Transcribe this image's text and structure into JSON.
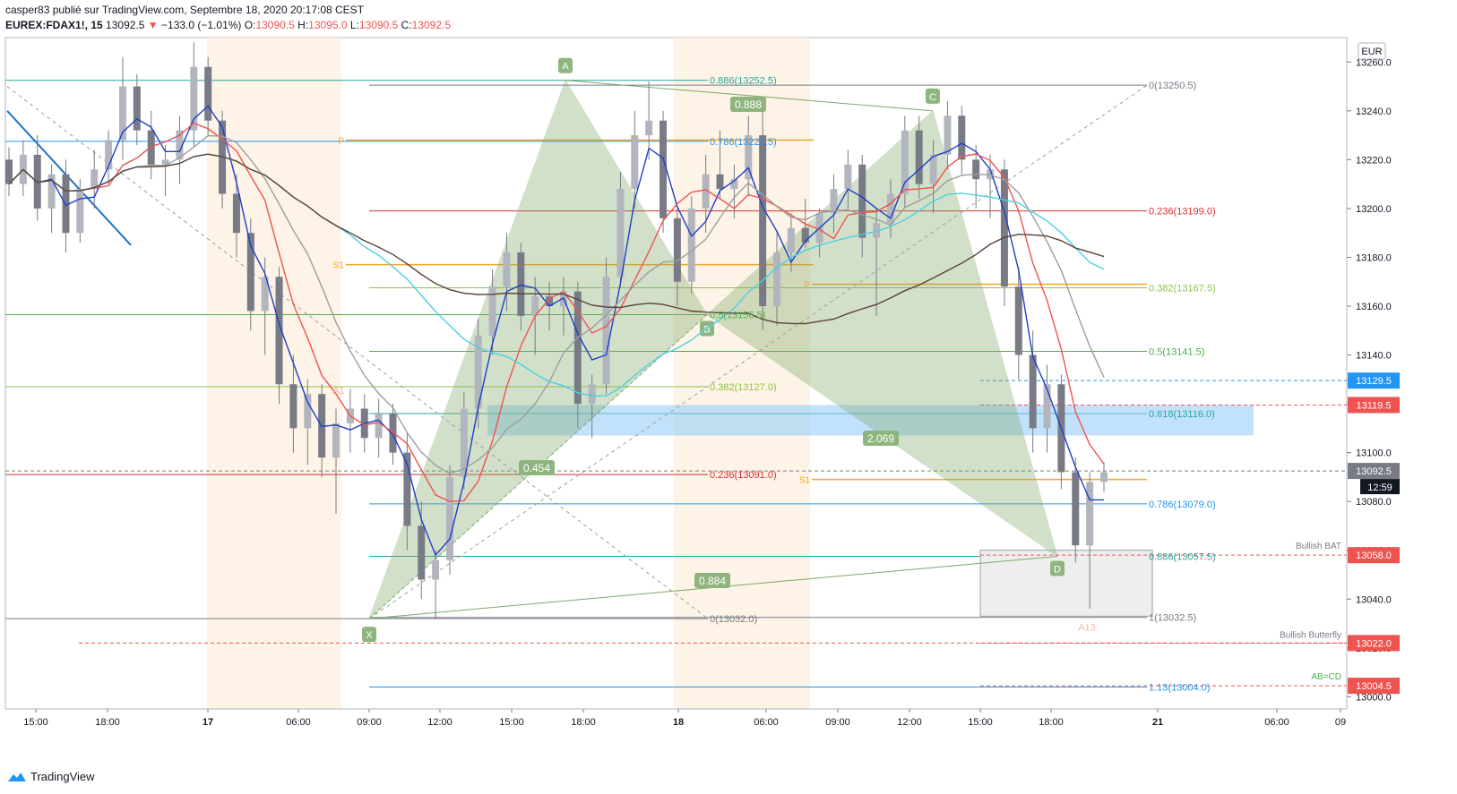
{
  "header": {
    "publisher": "casper83 publié sur TradingView.com, Septembre 18, 2020 20:17:08 CEST",
    "symbol": "EUREX:FDAX1!, 15",
    "last": "13092.5",
    "change": "−133.0 (−1.01%)",
    "o_label": "O:",
    "o": "13090.5",
    "h_label": "H:",
    "h": "13095.0",
    "l_label": "L:",
    "l": "13090.5",
    "c_label": "C:",
    "c": "13092.5"
  },
  "currency": "EUR",
  "countdown": "12:59",
  "footer": {
    "brand": "TradingView"
  },
  "colors": {
    "up": "#26a69a",
    "down": "#ef5350",
    "candle": "#787b86",
    "pattern_fill": "#7fa86a",
    "fib_blue": "#2196f3"
  },
  "chart_data": {
    "type": "candlestick",
    "ylim": [
      12995,
      13270
    ],
    "y_ticks": [
      13000,
      13020,
      13040,
      13060,
      13080,
      13100,
      13120,
      13140,
      13160,
      13180,
      13200,
      13220,
      13240,
      13260
    ],
    "y_tick_labels": [
      "13000.0",
      "13020.0",
      "13040.0",
      "13060.0",
      "13080.0",
      "13100.0",
      "13120.0",
      "13140.0",
      "13160.0",
      "13180.0",
      "13200.0",
      "13220.0",
      "13240.0",
      "13260.0"
    ],
    "x_tick_labels": [
      "15:00",
      "18:00",
      "17",
      "06:00",
      "09:00",
      "12:00",
      "15:00",
      "18:00",
      "18",
      "06:00",
      "09:00",
      "12:00",
      "15:00",
      "18:00",
      "21",
      "06:00",
      "09"
    ],
    "price_badges": [
      {
        "label": "13129.5",
        "value": 13129.5,
        "color": "#2196f3"
      },
      {
        "label": "13119.5",
        "value": 13119.5,
        "color": "#ef5350"
      },
      {
        "label": "13092.5",
        "value": 13092.5,
        "color": "#787b86"
      },
      {
        "label": "13058.0",
        "value": 13058.0,
        "color": "#ef5350"
      },
      {
        "label": "13022.0",
        "value": 13022.0,
        "color": "#ef5350"
      },
      {
        "label": "13004.5",
        "value": 13004.5,
        "color": "#ef5350"
      }
    ],
    "fib_left": [
      {
        "label": "0.886(13252.5)",
        "value": 13252.5,
        "color": "#26a69a"
      },
      {
        "label": "0.786(13227.5)",
        "value": 13227.5,
        "color": "#2196f3"
      },
      {
        "label": "0.5(13156.5)",
        "value": 13156.5,
        "color": "#4caf50"
      },
      {
        "label": "0.382(13127.0)",
        "value": 13127.0,
        "color": "#8bc34a"
      },
      {
        "label": "0.236(13091.0)",
        "value": 13091.0,
        "color": "#d32f2f"
      },
      {
        "label": "0(13032.0)",
        "value": 13032.0,
        "color": "#787b86"
      }
    ],
    "fib_right": [
      {
        "label": "0(13250.5)",
        "value": 13250.5,
        "color": "#787b86"
      },
      {
        "label": "0.236(13199.0)",
        "value": 13199.0,
        "color": "#d32f2f"
      },
      {
        "label": "0.382(13167.5)",
        "value": 13167.5,
        "color": "#8bc34a"
      },
      {
        "label": "0.5(13141.5)",
        "value": 13141.5,
        "color": "#4caf50"
      },
      {
        "label": "0.618(13116.0)",
        "value": 13116.0,
        "color": "#26a69a"
      },
      {
        "label": "0.786(13079.0)",
        "value": 13079.0,
        "color": "#2196f3"
      },
      {
        "label": "0.886(13057.5)",
        "value": 13057.5,
        "color": "#26a69a"
      },
      {
        "label": "1(13032.5)",
        "value": 13032.5,
        "color": "#787b86"
      },
      {
        "label": "1.13(13004.0)",
        "value": 13004.0,
        "color": "#2196f3"
      }
    ],
    "pattern_points": [
      {
        "label": "X",
        "value": 13032.0
      },
      {
        "label": "A",
        "value": 13252.5
      },
      {
        "label": "B",
        "value": 13156.5
      },
      {
        "label": "C",
        "value": 13240.0
      },
      {
        "label": "D",
        "value": 13057.5
      }
    ],
    "ratios": [
      "0.888",
      "0.454",
      "2.069",
      "0.884"
    ],
    "pattern_names": [
      "Bullish BAT",
      "Bullish Butterfly",
      "AB=CD"
    ],
    "pivot_labels": [
      "P",
      "S1",
      "P",
      "S1"
    ],
    "markers": [
      "A1",
      "A13"
    ],
    "candles": [
      [
        13220,
        13225,
        13205,
        13210
      ],
      [
        13210,
        13228,
        13205,
        13222
      ],
      [
        13222,
        13230,
        13195,
        13200
      ],
      [
        13200,
        13218,
        13190,
        13214
      ],
      [
        13214,
        13220,
        13182,
        13190
      ],
      [
        13190,
        13212,
        13186,
        13208
      ],
      [
        13208,
        13224,
        13200,
        13216
      ],
      [
        13216,
        13232,
        13210,
        13228
      ],
      [
        13228,
        13262,
        13220,
        13250
      ],
      [
        13250,
        13255,
        13226,
        13232
      ],
      [
        13232,
        13240,
        13212,
        13218
      ],
      [
        13218,
        13226,
        13205,
        13220
      ],
      [
        13220,
        13238,
        13210,
        13232
      ],
      [
        13232,
        13268,
        13225,
        13258
      ],
      [
        13258,
        13262,
        13230,
        13236
      ],
      [
        13236,
        13240,
        13200,
        13206
      ],
      [
        13206,
        13214,
        13180,
        13190
      ],
      [
        13190,
        13196,
        13150,
        13158
      ],
      [
        13158,
        13180,
        13140,
        13172
      ],
      [
        13172,
        13176,
        13120,
        13128
      ],
      [
        13128,
        13140,
        13100,
        13110
      ],
      [
        13110,
        13130,
        13095,
        13124
      ],
      [
        13124,
        13128,
        13090,
        13098
      ],
      [
        13098,
        13118,
        13075,
        13112
      ],
      [
        13112,
        13126,
        13100,
        13118
      ],
      [
        13118,
        13124,
        13100,
        13106
      ],
      [
        13106,
        13122,
        13098,
        13116
      ],
      [
        13116,
        13120,
        13095,
        13100
      ],
      [
        13100,
        13108,
        13060,
        13070
      ],
      [
        13070,
        13080,
        13040,
        13048
      ],
      [
        13048,
        13060,
        13032,
        13056
      ],
      [
        13056,
        13095,
        13050,
        13090
      ],
      [
        13090,
        13125,
        13085,
        13118
      ],
      [
        13118,
        13155,
        13110,
        13148
      ],
      [
        13148,
        13175,
        13140,
        13168
      ],
      [
        13168,
        13190,
        13158,
        13182
      ],
      [
        13182,
        13186,
        13150,
        13156
      ],
      [
        13156,
        13172,
        13140,
        13164
      ],
      [
        13164,
        13170,
        13150,
        13160
      ],
      [
        13160,
        13172,
        13148,
        13166
      ],
      [
        13166,
        13170,
        13110,
        13120
      ],
      [
        13120,
        13132,
        13106,
        13128
      ],
      [
        13128,
        13180,
        13124,
        13172
      ],
      [
        13172,
        13215,
        13168,
        13208
      ],
      [
        13208,
        13240,
        13200,
        13230
      ],
      [
        13230,
        13252,
        13220,
        13236
      ],
      [
        13236,
        13240,
        13190,
        13196
      ],
      [
        13196,
        13200,
        13160,
        13170
      ],
      [
        13170,
        13205,
        13165,
        13200
      ],
      [
        13200,
        13222,
        13190,
        13214
      ],
      [
        13214,
        13232,
        13204,
        13208
      ],
      [
        13208,
        13218,
        13196,
        13212
      ],
      [
        13212,
        13238,
        13205,
        13230
      ],
      [
        13230,
        13240,
        13150,
        13160
      ],
      [
        13160,
        13190,
        13152,
        13182
      ],
      [
        13182,
        13198,
        13174,
        13192
      ],
      [
        13192,
        13204,
        13184,
        13186
      ],
      [
        13186,
        13200,
        13180,
        13198
      ],
      [
        13198,
        13214,
        13190,
        13208
      ],
      [
        13208,
        13224,
        13200,
        13218
      ],
      [
        13218,
        13222,
        13180,
        13188
      ],
      [
        13188,
        13200,
        13156,
        13194
      ],
      [
        13194,
        13212,
        13188,
        13206
      ],
      [
        13206,
        13238,
        13200,
        13232
      ],
      [
        13232,
        13238,
        13204,
        13210
      ],
      [
        13210,
        13228,
        13198,
        13222
      ],
      [
        13222,
        13244,
        13216,
        13238
      ],
      [
        13238,
        13242,
        13214,
        13220
      ],
      [
        13220,
        13226,
        13200,
        13212
      ],
      [
        13212,
        13222,
        13196,
        13216
      ],
      [
        13216,
        13220,
        13160,
        13168
      ],
      [
        13168,
        13176,
        13130,
        13140
      ],
      [
        13140,
        13150,
        13100,
        13110
      ],
      [
        13110,
        13136,
        13100,
        13128
      ],
      [
        13128,
        13132,
        13085,
        13092
      ],
      [
        13092,
        13098,
        13055,
        13062
      ],
      [
        13062,
        13092,
        13036,
        13088
      ],
      [
        13088,
        13096,
        13084,
        13092
      ]
    ]
  }
}
